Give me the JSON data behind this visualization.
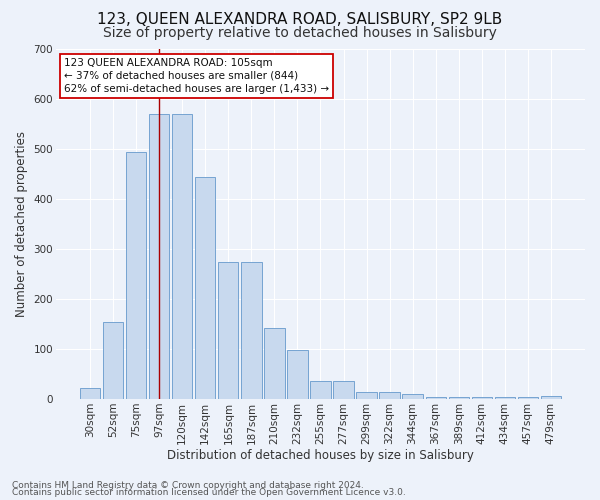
{
  "title": "123, QUEEN ALEXANDRA ROAD, SALISBURY, SP2 9LB",
  "subtitle": "Size of property relative to detached houses in Salisbury",
  "xlabel": "Distribution of detached houses by size in Salisbury",
  "ylabel": "Number of detached properties",
  "categories": [
    "30sqm",
    "52sqm",
    "75sqm",
    "97sqm",
    "120sqm",
    "142sqm",
    "165sqm",
    "187sqm",
    "210sqm",
    "232sqm",
    "255sqm",
    "277sqm",
    "299sqm",
    "322sqm",
    "344sqm",
    "367sqm",
    "389sqm",
    "412sqm",
    "434sqm",
    "457sqm",
    "479sqm"
  ],
  "values": [
    22,
    155,
    495,
    570,
    570,
    445,
    275,
    275,
    143,
    98,
    37,
    37,
    14,
    14,
    11,
    5,
    5,
    5,
    5,
    5,
    7
  ],
  "bar_color": "#c8d9ee",
  "bar_edge_color": "#6699cc",
  "vline_x": 3,
  "vline_color": "#aa0000",
  "annotation_lines": [
    "123 QUEEN ALEXANDRA ROAD: 105sqm",
    "← 37% of detached houses are smaller (844)",
    "62% of semi-detached houses are larger (1,433) →"
  ],
  "annotation_box_color": "#ffffff",
  "annotation_box_edge_color": "#cc0000",
  "ylim": [
    0,
    700
  ],
  "yticks": [
    0,
    100,
    200,
    300,
    400,
    500,
    600,
    700
  ],
  "footer_line1": "Contains HM Land Registry data © Crown copyright and database right 2024.",
  "footer_line2": "Contains public sector information licensed under the Open Government Licence v3.0.",
  "background_color": "#edf2fa",
  "grid_color": "#ffffff",
  "title_fontsize": 11,
  "subtitle_fontsize": 10,
  "axis_label_fontsize": 8.5,
  "tick_fontsize": 7.5,
  "annotation_fontsize": 7.5,
  "footer_fontsize": 6.5
}
